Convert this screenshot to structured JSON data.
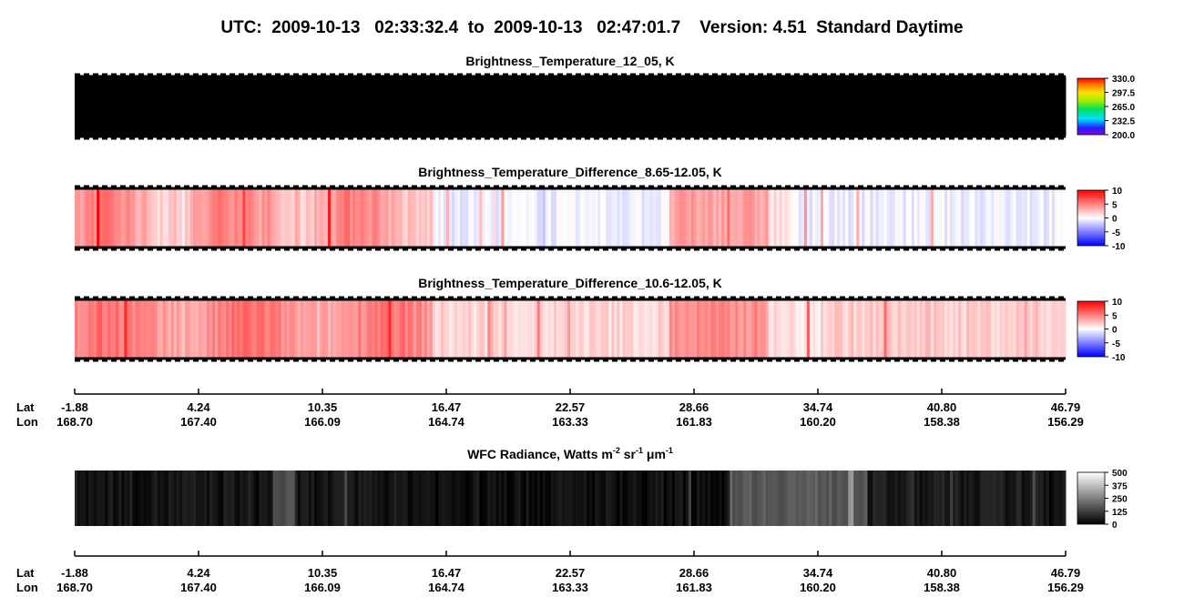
{
  "chart_data": {
    "type": "swath",
    "title": "UTC:  2009-10-13   02:33:32.4  to  2009-10-13   02:47:01.7    Version: 4.51  Standard Daytime",
    "panels": [
      {
        "title": [
          {
            "text": "Brightness_Temperature_12_05, K"
          }
        ],
        "colormap": "rainbow",
        "clim": [
          200,
          330
        ],
        "cticks": [
          {
            "value": 330,
            "label": "330.0"
          },
          {
            "value": 297.5,
            "label": "297.5"
          },
          {
            "value": 265,
            "label": "265.0"
          },
          {
            "value": 232.5,
            "label": "232.5"
          },
          {
            "value": 200,
            "label": "200.0"
          }
        ]
      },
      {
        "title": [
          {
            "text": "Brightness_Temperature_Difference_8.65-12.05, K"
          }
        ],
        "colormap": "bwr",
        "clim": [
          -10,
          10
        ],
        "cticks": [
          10,
          5,
          0,
          -5,
          -10
        ]
      },
      {
        "title": [
          {
            "text": "Brightness_Temperature_Difference_10.6-12.05, K"
          }
        ],
        "colormap": "bwr",
        "clim": [
          -10,
          10
        ],
        "cticks": [
          10,
          5,
          0,
          -5,
          -10
        ]
      },
      {
        "title": [
          {
            "text": "WFC Radiance, Watts m"
          },
          {
            "text": "-2",
            "sup": true
          },
          {
            "text": " sr"
          },
          {
            "text": "-1",
            "sup": true
          },
          {
            "text": " μm"
          },
          {
            "text": "-1",
            "sup": true
          }
        ],
        "colormap": "gray",
        "clim": [
          0,
          500
        ],
        "cticks": [
          500,
          375,
          250,
          125,
          0
        ]
      }
    ],
    "lat_label": "Lat",
    "lon_label": "Lon",
    "lat": [
      -1.88,
      4.24,
      10.35,
      16.47,
      22.57,
      28.66,
      34.74,
      {
        "value": 40.8,
        "label": "40.80"
      },
      46.79
    ],
    "lon": [
      {
        "value": 168.7,
        "label": "168.70"
      },
      {
        "value": 167.4,
        "label": "167.40"
      },
      166.09,
      164.74,
      163.33,
      161.83,
      {
        "value": 160.2,
        "label": "160.20"
      },
      158.38,
      156.29
    ]
  }
}
